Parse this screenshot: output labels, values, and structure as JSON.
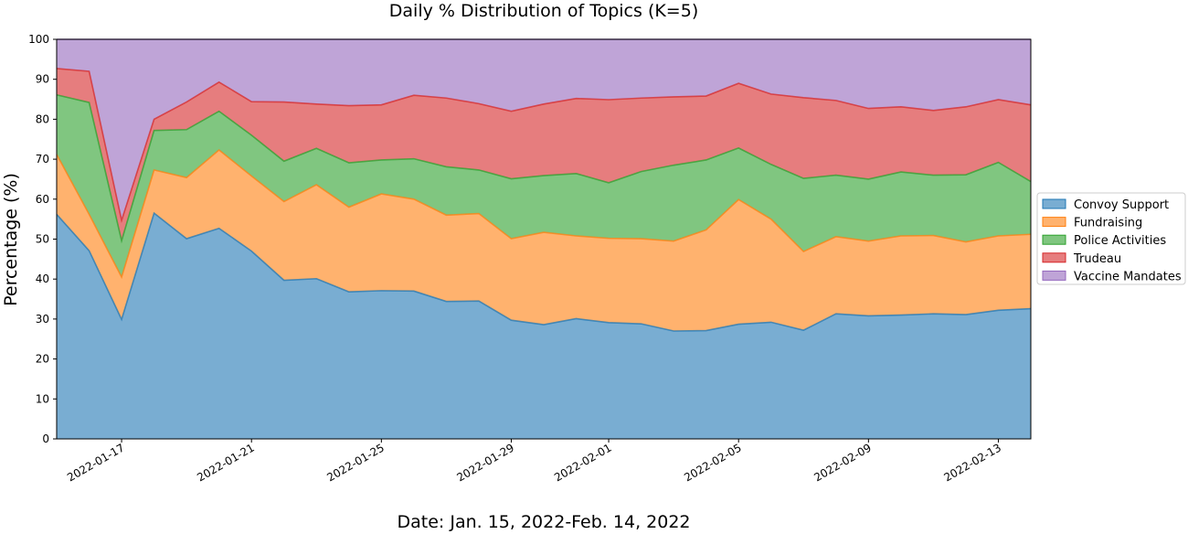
{
  "chart_data": {
    "type": "area",
    "title": "Daily % Distribution of Topics (K=5)",
    "xlabel": "Date: Jan. 15, 2022-Feb. 14, 2022",
    "ylabel": "Percentage (%)",
    "ylim": [
      0,
      100
    ],
    "yticks": [
      0,
      10,
      20,
      30,
      40,
      50,
      60,
      70,
      80,
      90,
      100
    ],
    "xlim": [
      "2022-01-15",
      "2022-02-14"
    ],
    "xticks": [
      "2022-01-17",
      "2022-01-21",
      "2022-01-25",
      "2022-01-29",
      "2022-02-01",
      "2022-02-05",
      "2022-02-09",
      "2022-02-13"
    ],
    "stacked": true,
    "grid": false,
    "legend_position": "center-right",
    "x": [
      "2022-01-15",
      "2022-01-16",
      "2022-01-17",
      "2022-01-18",
      "2022-01-19",
      "2022-01-20",
      "2022-01-21",
      "2022-01-22",
      "2022-01-23",
      "2022-01-24",
      "2022-01-25",
      "2022-01-26",
      "2022-01-27",
      "2022-01-28",
      "2022-01-29",
      "2022-01-30",
      "2022-01-31",
      "2022-02-01",
      "2022-02-02",
      "2022-02-03",
      "2022-02-04",
      "2022-02-05",
      "2022-02-06",
      "2022-02-07",
      "2022-02-08",
      "2022-02-09",
      "2022-02-10",
      "2022-02-11",
      "2022-02-12",
      "2022-02-13",
      "2022-02-14"
    ],
    "series": [
      {
        "name": "Convoy Support",
        "color": "#1f77b4",
        "values": [
          56.2,
          47.1,
          29.9,
          56.5,
          50.1,
          52.7,
          47,
          39.7,
          40.1,
          36.8,
          37.1,
          37,
          34.4,
          34.5,
          29.7,
          28.6,
          30.1,
          29.1,
          28.8,
          27,
          27.1,
          28.7,
          29.2,
          27.2,
          31.3,
          30.8,
          31,
          31.3,
          31.1,
          32.2,
          32.6
        ]
      },
      {
        "name": "Fundraising",
        "color": "#ff7f0e",
        "values": [
          15,
          9.1,
          10.6,
          10.8,
          15.3,
          19.6,
          18.8,
          19.7,
          23.5,
          21.2,
          24.2,
          23,
          21.6,
          21.9,
          20.4,
          23.1,
          20.7,
          21.1,
          21.3,
          22.5,
          25.2,
          31.2,
          25.8,
          19.7,
          19.3,
          18.7,
          19.8,
          19.6,
          18.2,
          18.6,
          18.6
        ]
      },
      {
        "name": "Police Activities",
        "color": "#2ca02c",
        "values": [
          14.9,
          28,
          9.1,
          9.9,
          12,
          9.7,
          10.2,
          10.1,
          9.1,
          11.1,
          8.5,
          10.1,
          12.1,
          10.9,
          15,
          14.2,
          15.6,
          13.9,
          16.8,
          19,
          17.5,
          12.9,
          13.7,
          18.3,
          15.4,
          15.5,
          16,
          15.1,
          16.8,
          18.4,
          13.2
        ]
      },
      {
        "name": "Trudeau",
        "color": "#d62728",
        "values": [
          6.6,
          7.8,
          5.1,
          2.8,
          6.9,
          7.3,
          8.4,
          14.8,
          11.1,
          14.3,
          13.8,
          15.9,
          17.2,
          16.6,
          16.9,
          17.9,
          18.8,
          20.8,
          18.4,
          17.1,
          16,
          16.2,
          17.6,
          20.2,
          18.7,
          17.7,
          16.3,
          16.2,
          17,
          15.7,
          19.2
        ]
      },
      {
        "name": "Vaccine Mandates",
        "color": "#9467bd",
        "values": [
          7.3,
          8,
          45.3,
          20,
          15.7,
          10.7,
          15.6,
          15.7,
          16.2,
          16.6,
          16.4,
          14,
          14.7,
          16.1,
          18,
          16.2,
          14.8,
          15.1,
          14.7,
          14.4,
          14.2,
          11,
          13.7,
          14.6,
          15.3,
          17.3,
          16.9,
          17.8,
          16.9,
          15.1,
          16.4
        ]
      }
    ]
  }
}
